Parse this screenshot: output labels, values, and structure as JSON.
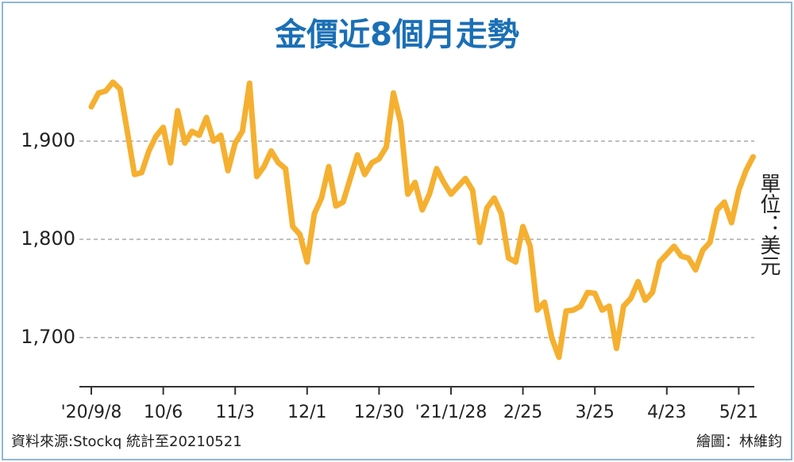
{
  "chart_data": {
    "type": "line",
    "title": "金價近8個月走勢",
    "unit_label": "單位：美元",
    "source": "資料來源:Stockq  統計至20210521",
    "credit": "繪圖：林維鈞",
    "color": "#f5b030",
    "categories": [
      "'20/9/8",
      null,
      null,
      null,
      null,
      null,
      null,
      null,
      null,
      null,
      "10/6",
      null,
      null,
      null,
      null,
      null,
      null,
      null,
      null,
      null,
      "11/3",
      null,
      null,
      null,
      null,
      null,
      null,
      null,
      null,
      null,
      "12/1",
      null,
      null,
      null,
      null,
      null,
      null,
      null,
      null,
      null,
      "12/30",
      null,
      null,
      null,
      null,
      null,
      null,
      null,
      null,
      null,
      "'21/1/28",
      null,
      null,
      null,
      null,
      null,
      null,
      null,
      null,
      null,
      "2/25",
      null,
      null,
      null,
      null,
      null,
      null,
      null,
      null,
      null,
      "3/25",
      null,
      null,
      null,
      null,
      null,
      null,
      null,
      null,
      null,
      "4/23",
      null,
      null,
      null,
      null,
      null,
      null,
      null,
      null,
      null,
      "5/21",
      null,
      null
    ],
    "values": [
      1935,
      1949,
      1951,
      1960,
      1953,
      1910,
      1866,
      1868,
      1890,
      1905,
      1914,
      1878,
      1931,
      1898,
      1910,
      1906,
      1924,
      1900,
      1906,
      1870,
      1898,
      1910,
      1959,
      1864,
      1874,
      1890,
      1878,
      1872,
      1813,
      1805,
      1777,
      1826,
      1842,
      1874,
      1834,
      1838,
      1862,
      1886,
      1866,
      1878,
      1882,
      1894,
      1949,
      1919,
      1846,
      1858,
      1830,
      1846,
      1872,
      1858,
      1846,
      1854,
      1862,
      1850,
      1797,
      1832,
      1842,
      1826,
      1781,
      1777,
      1813,
      1793,
      1728,
      1736,
      1700,
      1680,
      1727,
      1728,
      1732,
      1746,
      1745,
      1728,
      1732,
      1689,
      1732,
      1740,
      1757,
      1738,
      1746,
      1777,
      1785,
      1793,
      1783,
      1781,
      1769,
      1789,
      1797,
      1830,
      1838,
      1817,
      1850,
      1870,
      1884
    ],
    "ylim": [
      1650,
      1963
    ],
    "yticks": [
      {
        "value": 1700,
        "label": "1,700"
      },
      {
        "value": 1800,
        "label": "1,800"
      },
      {
        "value": 1900,
        "label": "1,900"
      }
    ],
    "grid": true
  }
}
